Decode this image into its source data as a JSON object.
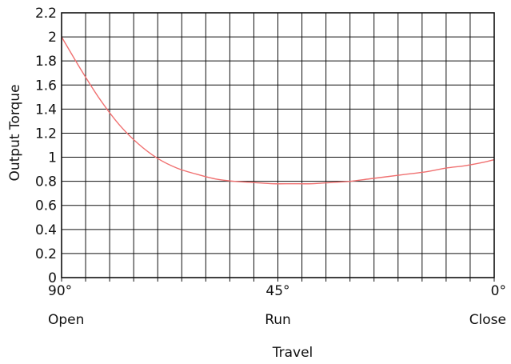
{
  "chart_data": {
    "type": "line",
    "xlabel": "Travel",
    "ylabel": "Output Torque",
    "ylim": [
      0,
      2.2
    ],
    "yticks": [
      "0",
      "0.2",
      "0.4",
      "0.6",
      "0.8",
      "1",
      "1.2",
      "1.4",
      "1.6",
      "1.8",
      "2",
      "2.2"
    ],
    "x_tick_labels": [
      {
        "value": 90,
        "label": "90°",
        "sublabel": "Open"
      },
      {
        "value": 45,
        "label": "45°",
        "sublabel": "Run"
      },
      {
        "value": 0,
        "label": "0°",
        "sublabel": "Close"
      }
    ],
    "xlim": [
      90,
      0
    ],
    "grid": true,
    "series": [
      {
        "color": "#f07070",
        "x": [
          90,
          86,
          82,
          78,
          74,
          70,
          66,
          62,
          58,
          54,
          50,
          46,
          42,
          38,
          34,
          30,
          26,
          22,
          18,
          14,
          10,
          6,
          2,
          0
        ],
        "y": [
          2.0,
          1.73,
          1.48,
          1.27,
          1.11,
          0.99,
          0.91,
          0.86,
          0.82,
          0.8,
          0.79,
          0.78,
          0.78,
          0.78,
          0.79,
          0.8,
          0.82,
          0.84,
          0.86,
          0.88,
          0.91,
          0.93,
          0.96,
          0.98
        ]
      }
    ]
  }
}
